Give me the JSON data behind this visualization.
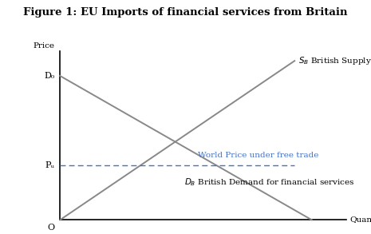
{
  "title": "Figure 1: EU Imports of financial services from Britain",
  "title_fontsize": 9.5,
  "background_color": "#ffffff",
  "supply_label": "$S_B$ British Supply of Financial Services",
  "demand_label": "$D_B$ British Demand for financial services",
  "world_price_label": "World Price under free trade",
  "world_price_color": "#4472c4",
  "supply_color": "#888888",
  "demand_color": "#888888",
  "D0_label": "D₀",
  "Pw_label": "Pᵤ",
  "Price_label": "Price",
  "Quantity_label": "Quantity",
  "O_label": "O",
  "font_family": "serif",
  "label_fontsize": 7.5,
  "tick_fontsize": 8
}
